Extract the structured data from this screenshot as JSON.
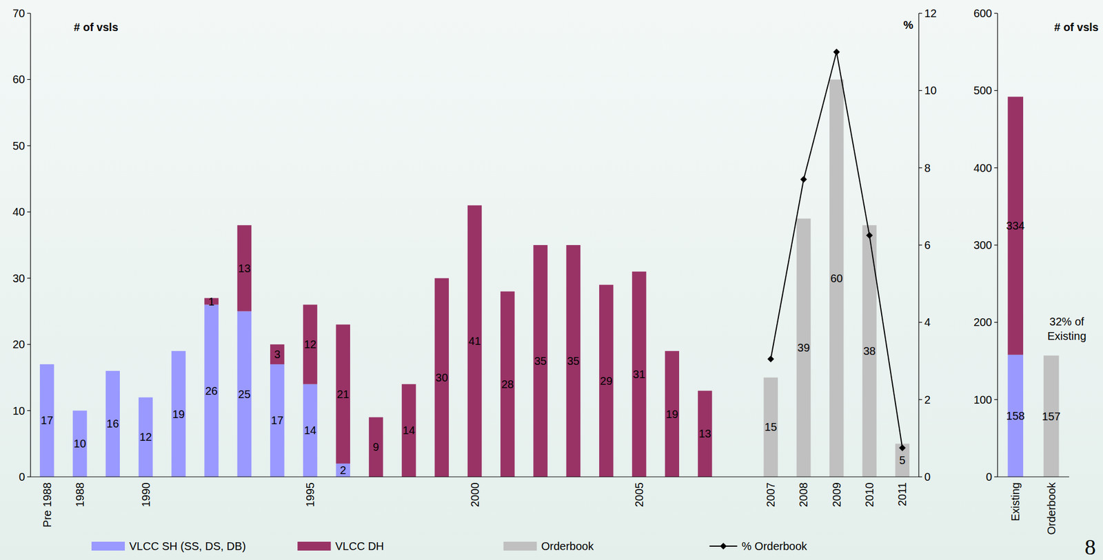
{
  "chart_data": [
    {
      "type": "bar",
      "stacked": true,
      "data_labels": true,
      "legend": "bottom",
      "y_label": "# of vsls",
      "y2_label": "%",
      "categories": [
        "Pre 1988",
        "1988",
        null,
        "1990",
        null,
        null,
        null,
        null,
        "1995",
        null,
        null,
        null,
        null,
        "2000",
        null,
        null,
        null,
        null,
        "2005",
        null,
        null,
        null,
        "2007",
        "2008",
        "2009",
        "2010",
        "2011"
      ],
      "series": [
        {
          "name": "VLCC SH (SS, DS, DB)",
          "color": "#9999ff",
          "values": [
            17,
            10,
            16,
            12,
            19,
            26,
            25,
            17,
            14,
            2,
            null,
            null,
            null,
            null,
            null,
            null,
            null,
            null,
            null,
            null,
            null,
            null,
            null,
            null,
            null,
            null,
            null
          ]
        },
        {
          "name": "VLCC DH",
          "color": "#993366",
          "values": [
            null,
            null,
            null,
            null,
            null,
            1,
            13,
            3,
            12,
            21,
            9,
            14,
            30,
            41,
            28,
            35,
            35,
            29,
            31,
            19,
            13,
            null,
            null,
            null,
            null,
            null,
            null
          ]
        },
        {
          "name": "Orderbook",
          "color": "#c0c0c0",
          "values": [
            null,
            null,
            null,
            null,
            null,
            null,
            null,
            null,
            null,
            null,
            null,
            null,
            null,
            null,
            null,
            null,
            null,
            null,
            null,
            null,
            null,
            null,
            15,
            39,
            60,
            38,
            5
          ]
        },
        {
          "name": "% Orderbook",
          "type": "line",
          "axis": "y2",
          "color": "#000000",
          "marker": "diamond",
          "values": [
            null,
            null,
            null,
            null,
            null,
            null,
            null,
            null,
            null,
            null,
            null,
            null,
            null,
            null,
            null,
            null,
            null,
            null,
            null,
            null,
            null,
            null,
            3.05,
            7.7,
            11,
            6.25,
            0.75
          ]
        }
      ],
      "ylim": [
        0,
        70
      ],
      "yticks": [
        0,
        10,
        20,
        30,
        40,
        50,
        60,
        70
      ],
      "y2lim": [
        0,
        12
      ],
      "y2ticks": [
        0,
        2,
        4,
        6,
        8,
        10,
        12
      ]
    },
    {
      "type": "bar",
      "stacked": true,
      "data_labels": true,
      "y_label": "# of vsls",
      "annotation": "32% of Existing",
      "categories": [
        "Existing",
        "Orderbook"
      ],
      "series": [
        {
          "color": "#9999ff",
          "values": [
            158,
            null
          ]
        },
        {
          "color": "#993366",
          "values": [
            334,
            null
          ]
        },
        {
          "color": "#c0c0c0",
          "values": [
            null,
            157
          ]
        }
      ],
      "ylim": [
        0,
        600
      ],
      "yticks": [
        0,
        100,
        200,
        300,
        400,
        500,
        600
      ]
    }
  ],
  "page_number": "8"
}
